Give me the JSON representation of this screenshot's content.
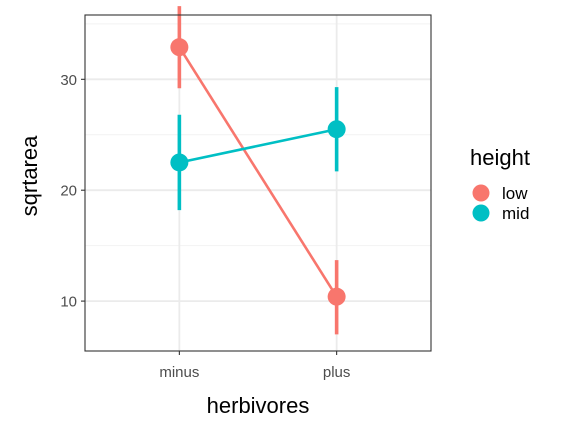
{
  "chart_data": {
    "type": "scatter",
    "categories": [
      "minus",
      "plus"
    ],
    "xlabel": "herbivores",
    "ylabel": "sqrtarea",
    "ylim": [
      5.5,
      35.8
    ],
    "yticks": [
      10,
      20,
      30
    ],
    "grid": true,
    "legend": {
      "title": "height",
      "position": "right"
    },
    "series": [
      {
        "name": "low",
        "color": "#F8766D",
        "values": [
          32.9,
          10.4
        ],
        "lower": [
          29.2,
          7.0
        ],
        "upper": [
          36.6,
          13.7
        ]
      },
      {
        "name": "mid",
        "color": "#00BFC4",
        "values": [
          22.5,
          25.5
        ],
        "lower": [
          18.2,
          21.7
        ],
        "upper": [
          26.8,
          29.3
        ]
      }
    ]
  }
}
